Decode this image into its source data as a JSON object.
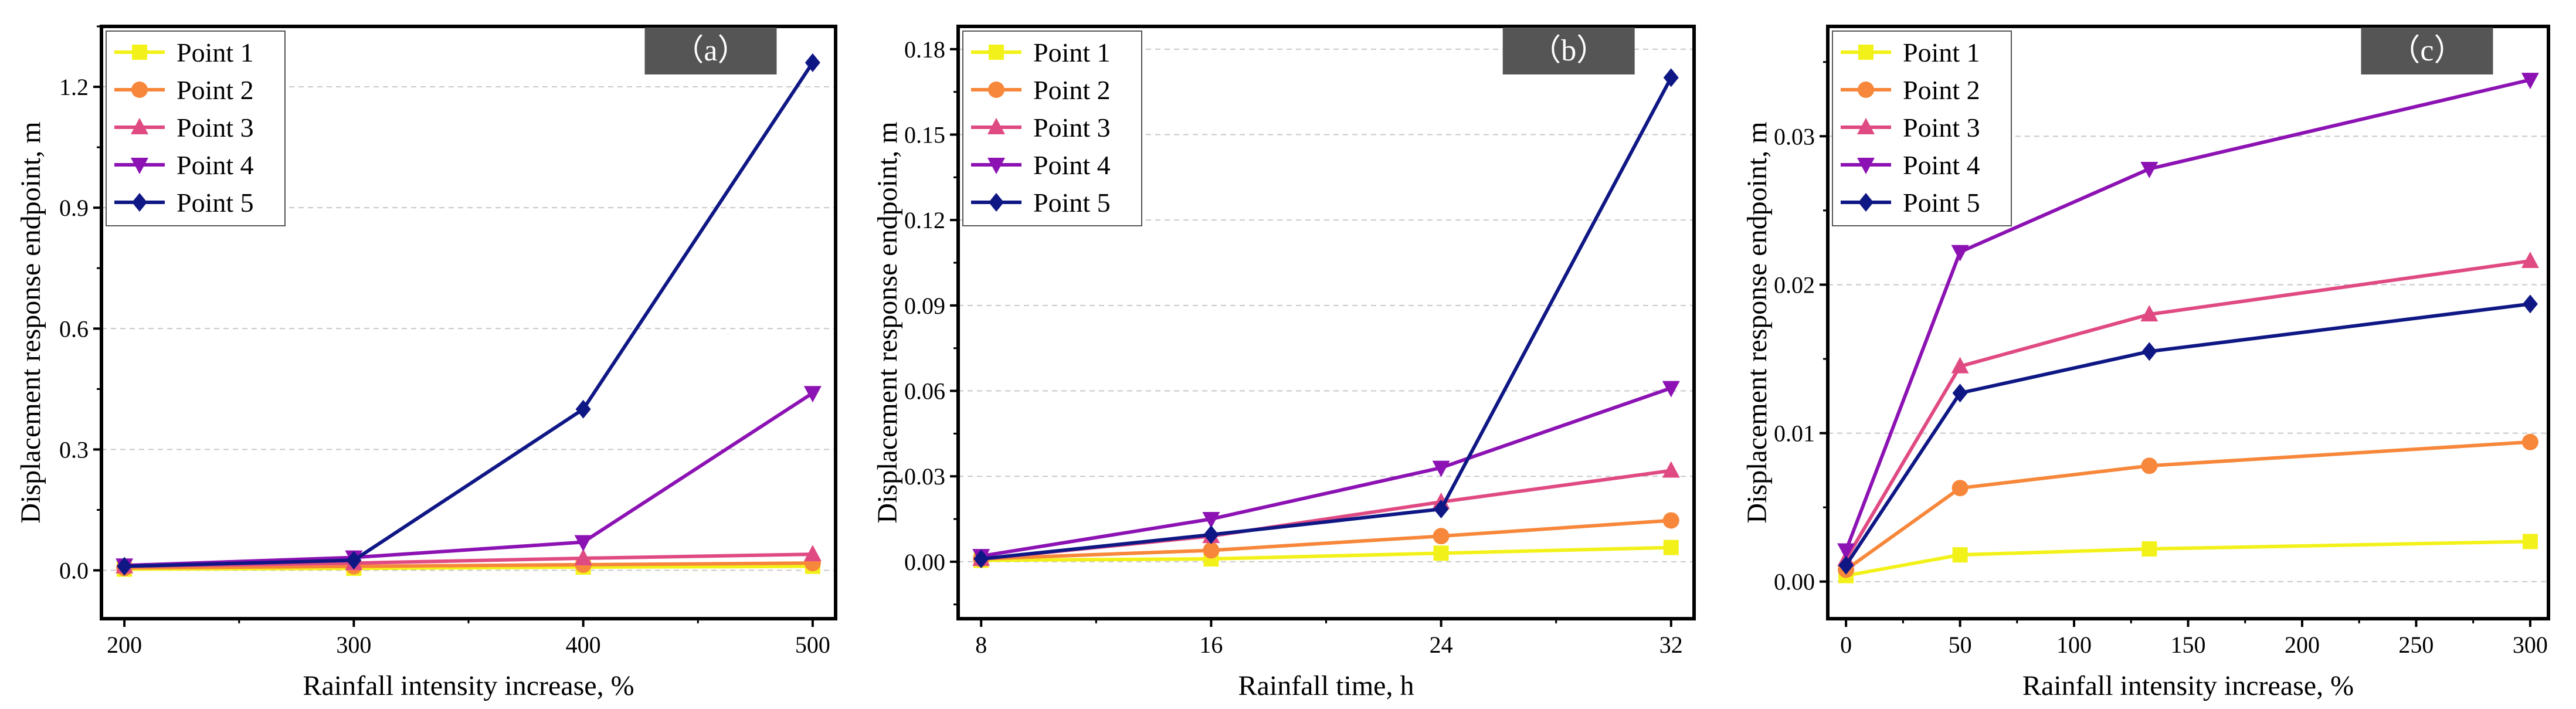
{
  "series_styles": [
    {
      "color": "#f2f21a",
      "marker": "square"
    },
    {
      "color": "#f7873a",
      "marker": "circle"
    },
    {
      "color": "#e04a83",
      "marker": "triangle-up"
    },
    {
      "color": "#8c12b3",
      "marker": "triangle-down"
    },
    {
      "color": "#0f1785",
      "marker": "diamond"
    }
  ],
  "chart_data": [
    {
      "type": "line",
      "panel_label": "（a）",
      "xlabel": "Rainfall intensity increase, %",
      "ylabel": "Displacement response endpoint, m",
      "x": [
        200,
        300,
        400,
        500
      ],
      "xlim": [
        190,
        510
      ],
      "xticks": [
        200,
        300,
        400,
        500
      ],
      "xtick_labels": [
        "200",
        "300",
        "400",
        "500"
      ],
      "ylim": [
        -0.12,
        1.35
      ],
      "yticks": [
        0.0,
        0.3,
        0.6,
        0.9,
        1.2
      ],
      "ytick_labels": [
        "0.0",
        "0.3",
        "0.6",
        "0.9",
        "1.2"
      ],
      "grid": "horizontal dashed",
      "legend_position": "top-left",
      "series": [
        {
          "name": "Point 1",
          "values": [
            0.003,
            0.005,
            0.008,
            0.01
          ]
        },
        {
          "name": "Point 2",
          "values": [
            0.006,
            0.01,
            0.014,
            0.018
          ]
        },
        {
          "name": "Point 3",
          "values": [
            0.01,
            0.018,
            0.03,
            0.04
          ]
        },
        {
          "name": "Point 4",
          "values": [
            0.012,
            0.032,
            0.07,
            0.44
          ]
        },
        {
          "name": "Point 5",
          "values": [
            0.01,
            0.025,
            0.4,
            1.26
          ]
        }
      ]
    },
    {
      "type": "line",
      "panel_label": "（b）",
      "xlabel": "Rainfall time, h",
      "ylabel": "Displacement response endpoint, m",
      "x": [
        8,
        16,
        24,
        32
      ],
      "xlim": [
        7.2,
        32.8
      ],
      "xticks": [
        8,
        16,
        24,
        32
      ],
      "xtick_labels": [
        "8",
        "16",
        "24",
        "32"
      ],
      "ylim": [
        -0.02,
        0.188
      ],
      "yticks": [
        0.0,
        0.03,
        0.06,
        0.09,
        0.12,
        0.15,
        0.18
      ],
      "ytick_labels": [
        "0.00",
        "0.03",
        "0.06",
        "0.09",
        "0.12",
        "0.15",
        "0.18"
      ],
      "grid": "horizontal dashed",
      "legend_position": "top-left",
      "series": [
        {
          "name": "Point 1",
          "values": [
            0.0005,
            0.001,
            0.003,
            0.005
          ]
        },
        {
          "name": "Point 2",
          "values": [
            0.001,
            0.004,
            0.009,
            0.0145
          ]
        },
        {
          "name": "Point 3",
          "values": [
            0.001,
            0.009,
            0.021,
            0.032
          ]
        },
        {
          "name": "Point 4",
          "values": [
            0.002,
            0.015,
            0.033,
            0.061
          ]
        },
        {
          "name": "Point 5",
          "values": [
            0.001,
            0.0095,
            0.0185,
            0.17
          ]
        }
      ]
    },
    {
      "type": "line",
      "panel_label": "（c）",
      "xlabel": "Rainfall intensity increase, %",
      "ylabel": "Displacement response endpoint, m",
      "x": [
        0,
        50,
        133,
        300
      ],
      "xlim": [
        -8,
        308
      ],
      "xticks": [
        0,
        50,
        100,
        150,
        200,
        250,
        300
      ],
      "xtick_labels": [
        "0",
        "50",
        "100",
        "150",
        "200",
        "250",
        "300"
      ],
      "ylim": [
        -0.0025,
        0.0374
      ],
      "yticks": [
        0.0,
        0.01,
        0.02,
        0.03
      ],
      "ytick_labels": [
        "0.00",
        "0.01",
        "0.02",
        "0.03"
      ],
      "grid": "horizontal dashed",
      "legend_position": "top-left",
      "series": [
        {
          "name": "Point 1",
          "values": [
            0.0004,
            0.0018,
            0.0022,
            0.0027
          ]
        },
        {
          "name": "Point 2",
          "values": [
            0.0008,
            0.0063,
            0.0078,
            0.0094
          ]
        },
        {
          "name": "Point 3",
          "values": [
            0.0015,
            0.0145,
            0.018,
            0.0216
          ]
        },
        {
          "name": "Point 4",
          "values": [
            0.0021,
            0.0222,
            0.0278,
            0.0338
          ]
        },
        {
          "name": "Point 5",
          "values": [
            0.0011,
            0.0127,
            0.0155,
            0.0187
          ]
        }
      ]
    }
  ]
}
